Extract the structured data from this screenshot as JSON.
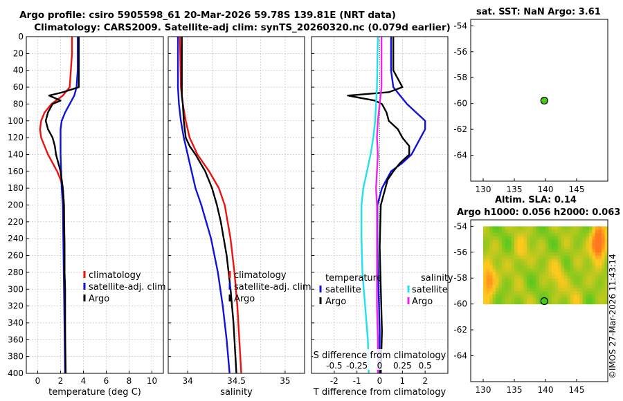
{
  "title_line1": "Argo profile: csiro 5905598_61 20-Mar-2026 59.78S 139.81E (NRT data)",
  "title_line2": "Climatology: CARS2009. Satellite-adj clim: synTS_20260320.nc (0.079d earlier)",
  "sst_title": "sat. SST: NaN Argo: 3.61",
  "sla_title1": "Altim. SLA: 0.14",
  "sla_title2": "Argo h1000: 0.056 h2000: 0.063",
  "copyright": "©IMOS 27-Mar-2026 11:43:14",
  "colors": {
    "climatology": "#ee1111",
    "satellite": "#1111dd",
    "argo": "#000000",
    "sat_salinity": "#22e0ee",
    "argo_salinity": "#ee22ee",
    "marker": "#44cc11"
  },
  "chart_data": [
    {
      "type": "line",
      "name": "temperature",
      "xlabel": "temperature (deg C)",
      "xlim": [
        -1,
        11
      ],
      "ylim": [
        0,
        400
      ],
      "xticks": [
        0,
        2,
        4,
        6,
        8,
        10
      ],
      "yticks": [
        0,
        20,
        40,
        60,
        80,
        100,
        120,
        140,
        160,
        180,
        200,
        220,
        240,
        260,
        280,
        300,
        320,
        340,
        360,
        380,
        400
      ],
      "legend": [
        "climatology",
        "satellite-adj. clim",
        "Argo"
      ],
      "series": [
        {
          "name": "climatology",
          "depth": [
            0,
            20,
            40,
            60,
            70,
            80,
            90,
            100,
            110,
            120,
            130,
            140,
            150,
            160,
            170,
            180,
            200,
            250,
            300,
            350,
            400
          ],
          "values": [
            3.0,
            3.0,
            2.9,
            2.8,
            2.2,
            1.2,
            0.6,
            0.3,
            0.2,
            0.3,
            0.6,
            0.9,
            1.3,
            1.7,
            2.0,
            2.2,
            2.3,
            2.35,
            2.35,
            2.4,
            2.4
          ]
        },
        {
          "name": "satellite-adj. clim",
          "depth": [
            0,
            20,
            40,
            60,
            70,
            80,
            90,
            100,
            110,
            120,
            140,
            160,
            180,
            200,
            250,
            300,
            350,
            400
          ],
          "values": [
            3.5,
            3.5,
            3.5,
            3.4,
            3.2,
            2.8,
            2.4,
            2.1,
            2.0,
            2.0,
            2.0,
            2.05,
            2.1,
            2.2,
            2.25,
            2.3,
            2.35,
            2.4
          ]
        },
        {
          "name": "Argo",
          "depth": [
            0,
            20,
            40,
            60,
            66,
            70,
            76,
            80,
            90,
            100,
            110,
            120,
            130,
            140,
            150,
            160,
            170,
            180,
            200,
            220,
            250,
            280,
            300,
            350,
            400
          ],
          "values": [
            3.6,
            3.6,
            3.6,
            3.6,
            2.2,
            1.0,
            2.0,
            1.3,
            0.9,
            0.7,
            0.9,
            1.3,
            1.5,
            1.6,
            1.8,
            2.0,
            2.1,
            2.2,
            2.3,
            2.3,
            2.35,
            2.35,
            2.4,
            2.4,
            2.45
          ]
        }
      ]
    },
    {
      "type": "line",
      "name": "salinity",
      "xlabel": "salinity",
      "xlim": [
        33.8,
        35.2
      ],
      "ylim": [
        0,
        400
      ],
      "xticks": [
        34,
        34.5,
        35
      ],
      "xticklabels": [
        "34",
        "34.5",
        "35"
      ],
      "legend": [
        "climatology",
        "satellite-adj. clim",
        "Argo"
      ],
      "series": [
        {
          "name": "climatology",
          "depth": [
            0,
            60,
            80,
            100,
            120,
            140,
            160,
            180,
            200,
            240,
            280,
            320,
            360,
            400
          ],
          "values": [
            33.92,
            33.93,
            33.95,
            33.98,
            34.02,
            34.1,
            34.22,
            34.32,
            34.38,
            34.44,
            34.48,
            34.51,
            34.53,
            34.55
          ]
        },
        {
          "name": "satellite-adj. clim",
          "depth": [
            0,
            60,
            80,
            100,
            120,
            140,
            160,
            180,
            200,
            240,
            280,
            320,
            360,
            400
          ],
          "values": [
            33.9,
            33.9,
            33.91,
            33.93,
            33.96,
            34.0,
            34.04,
            34.08,
            34.14,
            34.24,
            34.31,
            34.36,
            34.4,
            34.43
          ]
        },
        {
          "name": "Argo",
          "depth": [
            0,
            60,
            70,
            80,
            100,
            120,
            130,
            140,
            160,
            180,
            200,
            220,
            260,
            300,
            340,
            380,
            400
          ],
          "values": [
            33.94,
            33.94,
            33.94,
            33.95,
            33.96,
            33.98,
            34.02,
            34.08,
            34.18,
            34.25,
            34.3,
            34.34,
            34.4,
            34.44,
            34.47,
            34.49,
            34.5
          ]
        }
      ]
    },
    {
      "type": "line",
      "name": "difference",
      "xlabel": "T difference from climatology",
      "xlabel_top": "S difference from climatology",
      "xlim": [
        -3,
        3
      ],
      "ylim": [
        0,
        400
      ],
      "xticks": [
        -2,
        -1,
        0,
        1,
        2
      ],
      "s_xticks": [
        "-0.5",
        "-0.25",
        "0",
        "0.25",
        "0.5"
      ],
      "legend_temperature": [
        "temperature",
        "satellite",
        "Argo"
      ],
      "legend_salinity": [
        "salinity",
        "satellite",
        "Argo"
      ],
      "series": [
        {
          "name": "T satellite",
          "depth": [
            0,
            40,
            60,
            70,
            80,
            90,
            100,
            110,
            120,
            130,
            140,
            150,
            160,
            180,
            200,
            250,
            300,
            350,
            400
          ],
          "values": [
            0.5,
            0.5,
            0.6,
            0.9,
            1.2,
            1.6,
            2.0,
            2.0,
            1.8,
            1.6,
            1.4,
            1.0,
            0.5,
            0.1,
            -0.1,
            -0.1,
            -0.05,
            0.0,
            0.0
          ]
        },
        {
          "name": "T Argo",
          "depth": [
            0,
            40,
            60,
            66,
            70,
            76,
            80,
            90,
            100,
            110,
            120,
            130,
            140,
            150,
            160,
            170,
            180,
            200,
            250,
            300,
            350,
            400
          ],
          "values": [
            0.6,
            0.6,
            1.0,
            0.4,
            -1.4,
            -0.2,
            0.1,
            0.3,
            0.4,
            0.8,
            1.0,
            1.3,
            1.3,
            0.9,
            0.6,
            0.35,
            0.25,
            0.05,
            0.0,
            0.05,
            0.1,
            0.05
          ]
        },
        {
          "name": "S satellite",
          "depth": [
            0,
            60,
            80,
            100,
            120,
            140,
            160,
            180,
            200,
            240,
            280,
            320,
            360,
            400
          ],
          "values": [
            -0.02,
            -0.03,
            -0.04,
            -0.05,
            -0.07,
            -0.1,
            -0.14,
            -0.18,
            -0.2,
            -0.2,
            -0.19,
            -0.16,
            -0.13,
            -0.12
          ]
        },
        {
          "name": "S Argo",
          "depth": [
            0,
            60,
            80,
            100,
            120,
            140,
            160,
            180,
            200,
            240,
            280,
            320,
            360,
            400
          ],
          "values": [
            0.02,
            0.02,
            0.0,
            -0.02,
            -0.03,
            -0.02,
            -0.03,
            -0.04,
            -0.03,
            -0.03,
            -0.03,
            -0.03,
            -0.02,
            -0.02
          ]
        }
      ]
    },
    {
      "type": "scatter",
      "name": "sst_map",
      "title": "sat. SST: NaN Argo: 3.61",
      "xlim": [
        128,
        150
      ],
      "ylim": [
        -66,
        -53.5
      ],
      "xticks": [
        130,
        135,
        140,
        145
      ],
      "yticks": [
        -54,
        -56,
        -58,
        -60,
        -62,
        -64
      ],
      "points": [
        {
          "lon": 139.81,
          "lat": -59.78
        }
      ]
    },
    {
      "type": "heatmap",
      "name": "sla_map",
      "title": "Altim. SLA: 0.14",
      "xlim": [
        128,
        150
      ],
      "ylim": [
        -66,
        -53.5
      ],
      "xticks": [
        130,
        135,
        140,
        145
      ],
      "yticks": [
        -54,
        -56,
        -58,
        -60,
        -62,
        -64
      ],
      "data_lon_range": [
        130,
        150
      ],
      "data_lat_range": [
        -60,
        -54
      ],
      "points": [
        {
          "lon": 139.81,
          "lat": -59.78
        }
      ]
    }
  ]
}
